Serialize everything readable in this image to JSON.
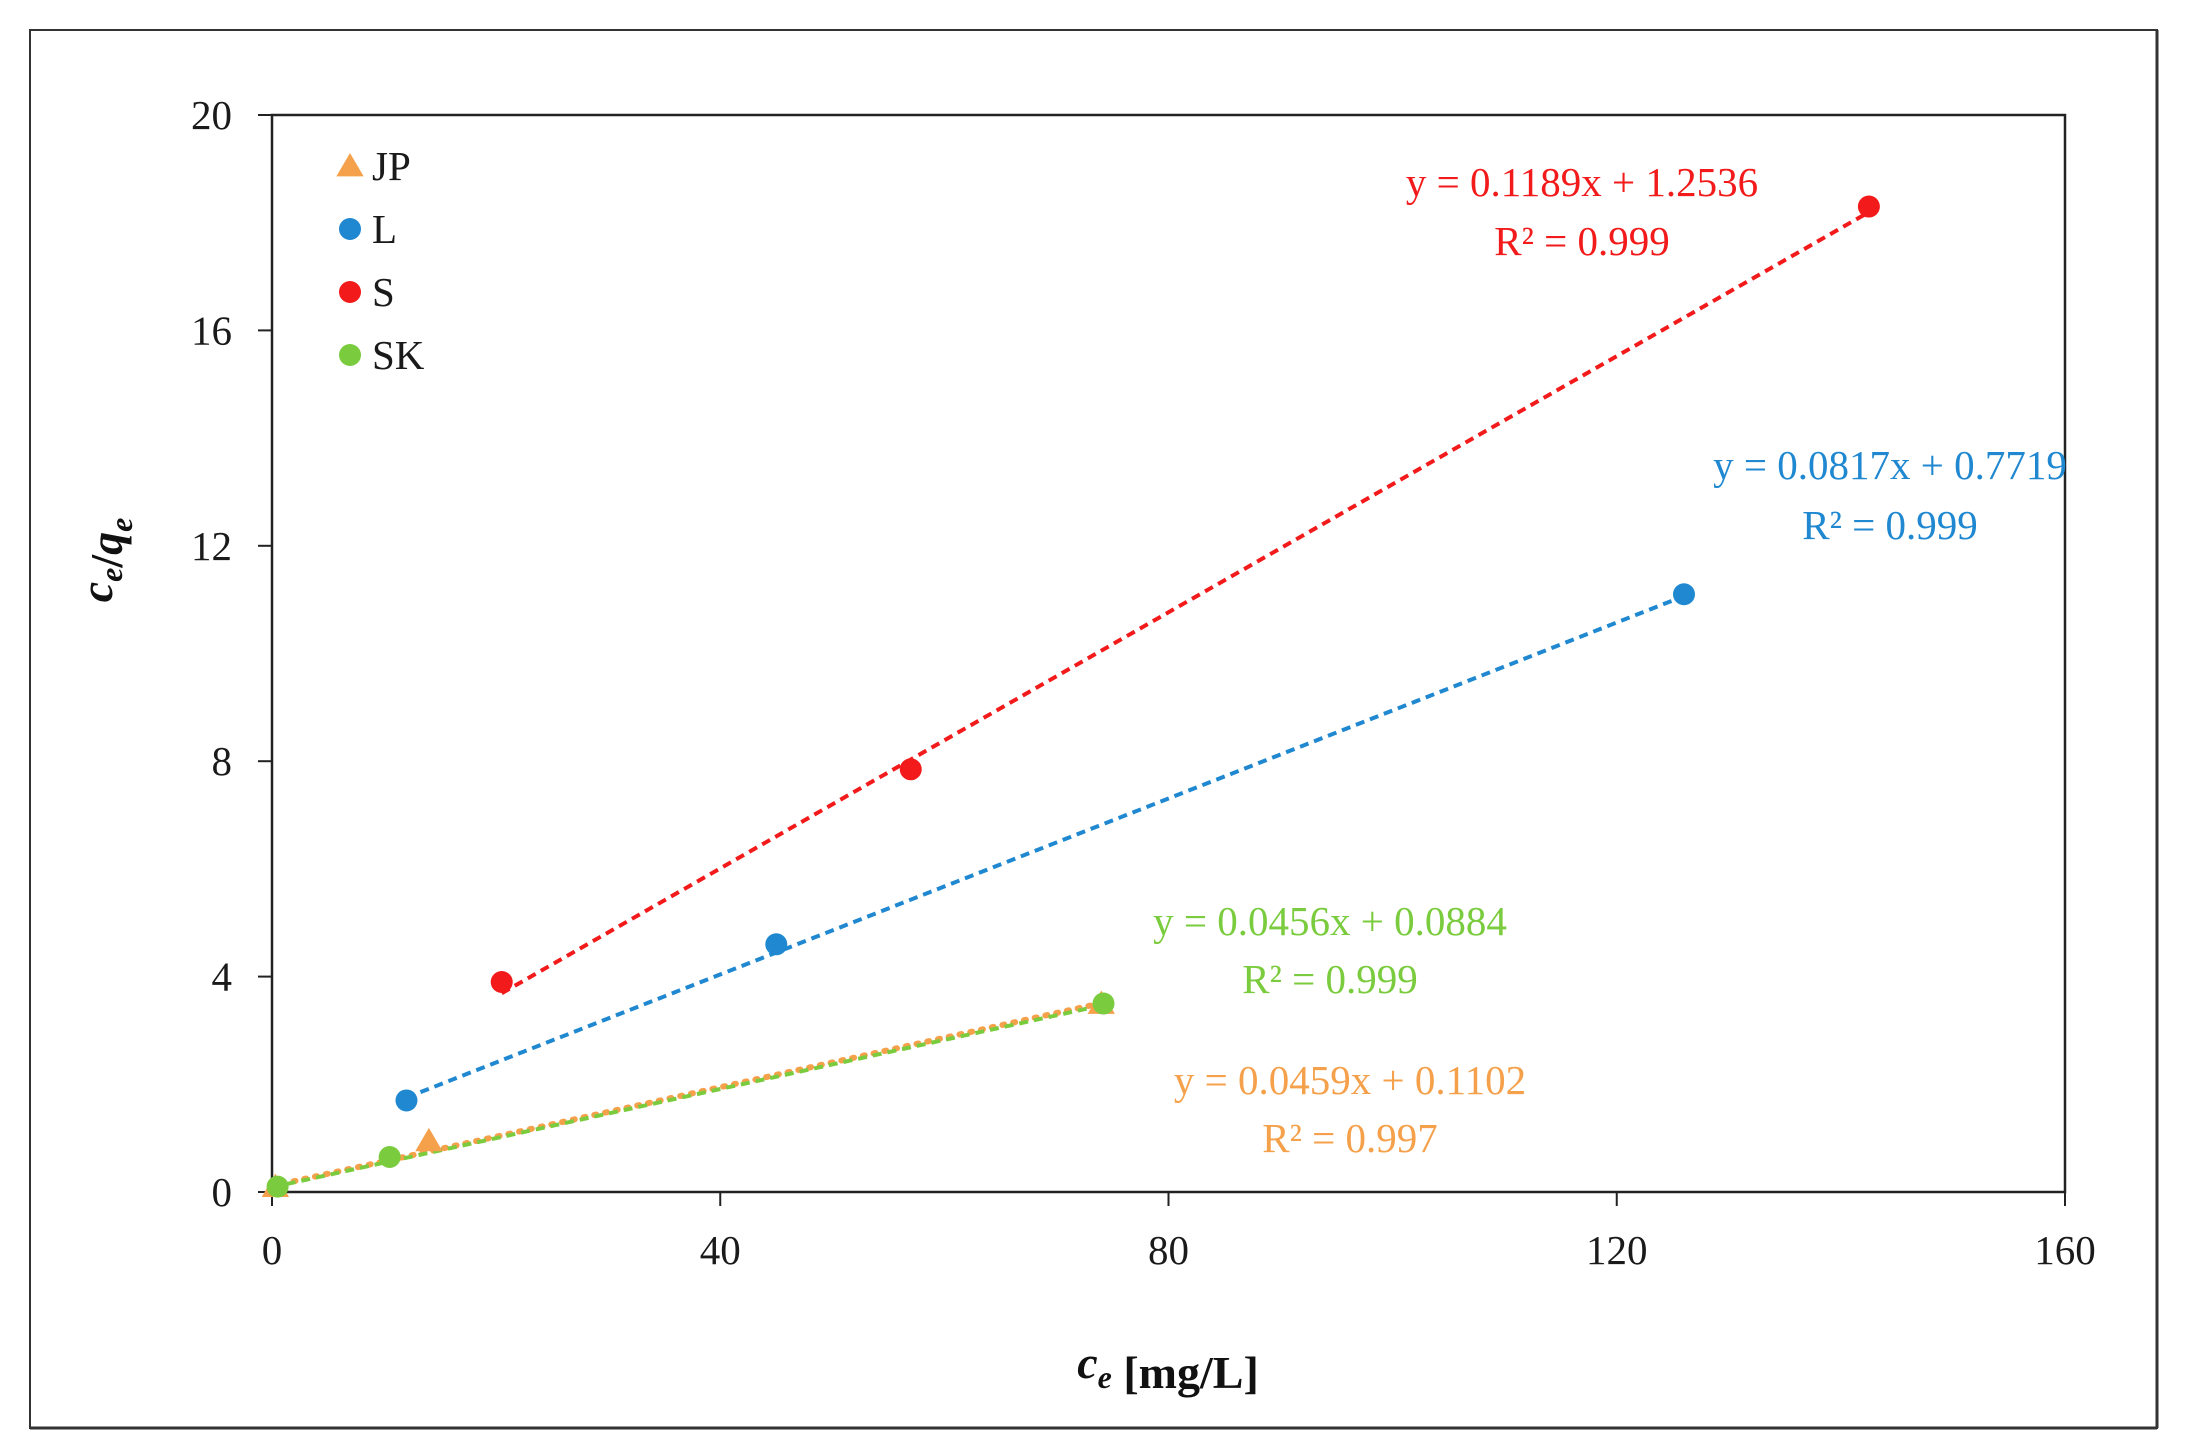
{
  "chart_data": {
    "type": "scatter",
    "xlabel": "c_e [mg/L]",
    "ylabel": "c_e/q_e",
    "xlim": [
      0,
      160
    ],
    "ylim": [
      0,
      20
    ],
    "x_ticks": [
      0,
      40,
      80,
      120,
      160
    ],
    "y_ticks": [
      0,
      4,
      8,
      12,
      16,
      20
    ],
    "grid": false,
    "legend_position": "top-left",
    "series": [
      {
        "name": "JP",
        "marker": "triangle",
        "color": "#F5A04A",
        "points": [
          [
            0.3,
            0.1
          ],
          [
            14,
            0.95
          ],
          [
            74,
            3.5
          ]
        ],
        "fit": {
          "x_range": [
            0,
            74
          ],
          "slope": 0.0459,
          "intercept": 0.1102,
          "line_style": "dotted"
        },
        "equation": "y = 0.0459x + 0.1102",
        "r2": "R² = 0.997"
      },
      {
        "name": "L",
        "marker": "circle",
        "color": "#1F88D0",
        "points": [
          [
            12,
            1.7
          ],
          [
            45,
            4.6
          ],
          [
            126,
            11.1
          ]
        ],
        "fit": {
          "x_range": [
            12,
            126
          ],
          "slope": 0.0817,
          "intercept": 0.7719,
          "line_style": "dashed"
        },
        "equation": "y = 0.0817x + 0.7719",
        "r2": "R² = 0.999"
      },
      {
        "name": "S",
        "marker": "circle",
        "color": "#F21A1A",
        "points": [
          [
            20.5,
            3.9
          ],
          [
            57,
            7.85
          ],
          [
            142.5,
            18.3
          ]
        ],
        "fit": {
          "x_range": [
            20.5,
            142.5
          ],
          "slope": 0.1189,
          "intercept": 1.2536,
          "line_style": "dashed"
        },
        "equation": "y = 0.1189x + 1.2536",
        "r2": "R² = 0.999"
      },
      {
        "name": "SK",
        "marker": "circle",
        "color": "#7ACC3E",
        "points": [
          [
            0.5,
            0.1
          ],
          [
            10.5,
            0.65
          ],
          [
            74.2,
            3.5
          ]
        ],
        "fit": {
          "x_range": [
            0,
            74.2
          ],
          "slope": 0.0456,
          "intercept": 0.0884,
          "line_style": "dashed"
        },
        "equation": "y = 0.0456x + 0.0884",
        "r2": "R² = 0.999"
      }
    ]
  }
}
